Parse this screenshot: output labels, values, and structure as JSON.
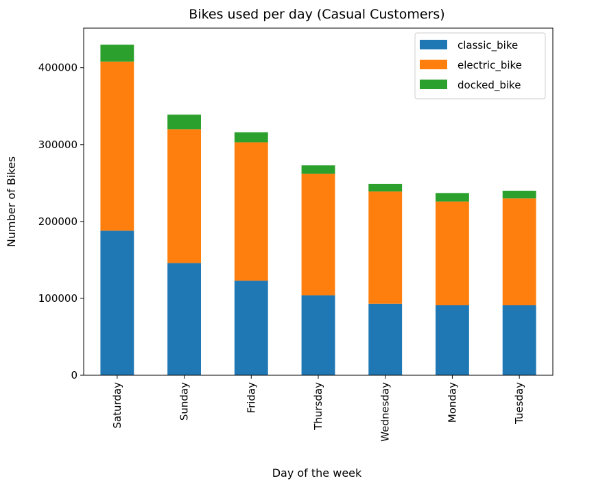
{
  "chart_data": {
    "type": "bar",
    "stacked": true,
    "title": "Bikes used per day (Casual Customers)",
    "xlabel": "Day of the week",
    "ylabel": "Number of Bikes",
    "categories": [
      "Saturday",
      "Sunday",
      "Friday",
      "Thursday",
      "Wednesday",
      "Monday",
      "Tuesday"
    ],
    "series": [
      {
        "name": "classic_bike",
        "color": "#1f77b4",
        "values": [
          188000,
          146000,
          123000,
          104000,
          93000,
          91000,
          91000
        ]
      },
      {
        "name": "electric_bike",
        "color": "#ff7f0e",
        "values": [
          220000,
          174000,
          180000,
          158000,
          146000,
          135000,
          139000
        ]
      },
      {
        "name": "docked_bike",
        "color": "#2ca02c",
        "values": [
          22000,
          19000,
          13000,
          11000,
          10000,
          11000,
          10000
        ]
      }
    ],
    "yticks": [
      0,
      100000,
      200000,
      300000,
      400000
    ],
    "ytick_labels": [
      "0",
      "100000",
      "200000",
      "300000",
      "400000"
    ],
    "ylim": [
      0,
      451500
    ],
    "legend_position": "upper right",
    "grid": false
  }
}
